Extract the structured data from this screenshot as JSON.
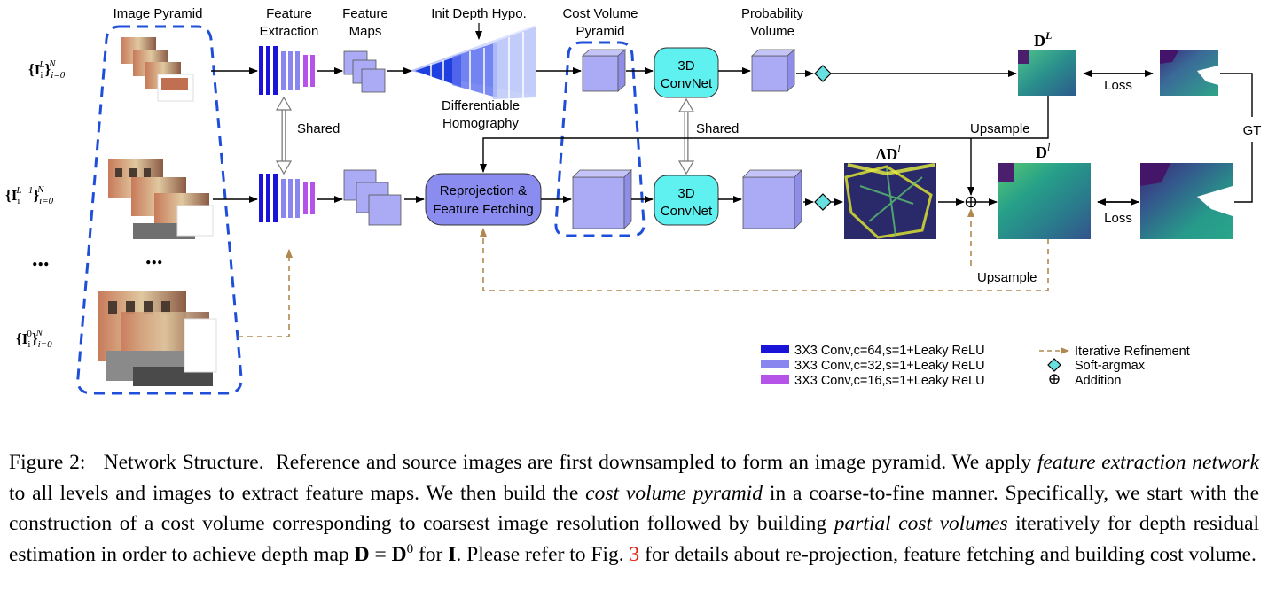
{
  "figure": {
    "labels": {
      "image_pyramid": "Image Pyramid",
      "feature_extraction_1": "Feature",
      "feature_extraction_2": "Extraction",
      "feature_maps_1": "Feature",
      "feature_maps_2": "Maps",
      "init_depth": "Init Depth Hypo.",
      "cost_volume_1": "Cost Volume",
      "cost_volume_2": "Pyramid",
      "probability_1": "Probability",
      "probability_2": "Volume",
      "diff_homography_1": "Differentiable",
      "diff_homography_2": "Homography",
      "shared": "Shared",
      "shared_convnet": "Shared",
      "upsample_top": "Upsample",
      "upsample_bottom": "Upsample",
      "loss_top": "Loss",
      "loss_bottom": "Loss",
      "gt": "GT",
      "convnet_line1": "3D",
      "convnet_line2": "ConvNet",
      "reprojection_line1": "Reprojection &",
      "reprojection_line2": "Feature Fetching",
      "ellipsis": "..."
    },
    "math": {
      "input_L_base": "{I",
      "input_L_sub": "i",
      "input_L_sup": "L",
      "input_L_close": "}",
      "input_L_range_sub": "i=0",
      "input_L_range_sup": "N",
      "input_Lm1_sup": "L−1",
      "input_0_sup": "0",
      "depth_L": "D",
      "depth_L_sup": "L",
      "depth_l": "D",
      "depth_l_sup": "l",
      "delta_depth": "ΔD",
      "delta_depth_sup": "l"
    },
    "legend": [
      {
        "color": "#1a14d8",
        "text": "3X3 Conv,c=64,s=1+Leaky ReLU"
      },
      {
        "color": "#8a86f0",
        "text": "3X3 Conv,c=32,s=1+Leaky ReLU"
      },
      {
        "color": "#b552e8",
        "text": "3X3 Conv,c=16,s=1+Leaky ReLU"
      },
      {
        "symbol": "dashed-arrow",
        "text": "Iterative Refinement"
      },
      {
        "symbol": "diamond",
        "text": "Soft-argmax"
      },
      {
        "symbol": "oplus",
        "text": "Addition"
      }
    ],
    "colors": {
      "pyramid_dash": "#1f4fd8",
      "cube_fill": "#aaaaf5",
      "convnet_fill": "#5ff0f0",
      "reprojection_fill": "#8a8cf0",
      "diamond_fill": "#66e0e0",
      "refinement_arrow": "#b08850"
    }
  },
  "caption": {
    "label": "Figure 2:",
    "title": "Network Structure.",
    "text_1": "Reference and source images are first downsampled to form an image pyramid. We apply",
    "em_1": "feature extraction network",
    "text_2": "to all levels and images to extract feature maps. We then build the",
    "em_2": "cost volume pyramid",
    "text_3": "in a coarse-to-fine manner. Specifically, we start with the construction of a cost volume corresponding to coarsest image resolution followed by building",
    "em_3": "partial cost volumes",
    "text_4": "iteratively for depth residual estimation in order to achieve depth map",
    "eq_D": "D",
    "eq_equals": " = ",
    "eq_D0": "D",
    "eq_D0_sup": "0",
    "text_5": " for ",
    "eq_I": "I",
    "text_6": ". Please refer to Fig.",
    "fig_ref": "3",
    "text_7": "for details about re-projection, feature fetching and building cost volume."
  }
}
